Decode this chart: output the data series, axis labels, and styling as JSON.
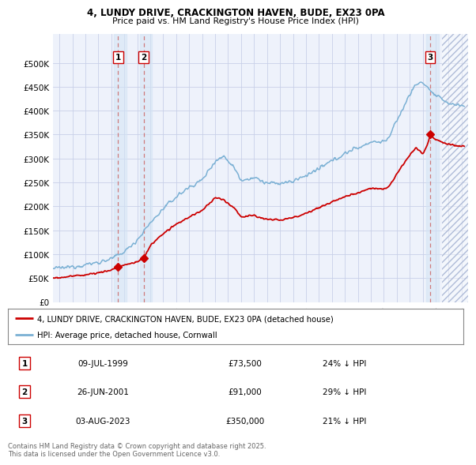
{
  "title_line1": "4, LUNDY DRIVE, CRACKINGTON HAVEN, BUDE, EX23 0PA",
  "title_line2": "Price paid vs. HM Land Registry's House Price Index (HPI)",
  "plot_bg": "#eef2fb",
  "grid_color": "#c8d0e8",
  "red_line_color": "#cc0000",
  "blue_line_color": "#7ab0d4",
  "legend_label_red": "4, LUNDY DRIVE, CRACKINGTON HAVEN, BUDE, EX23 0PA (detached house)",
  "legend_label_blue": "HPI: Average price, detached house, Cornwall",
  "transactions": [
    {
      "num": 1,
      "date_str": "09-JUL-1999",
      "year": 1999.52,
      "price": 73500,
      "pct": "24%"
    },
    {
      "num": 2,
      "date_str": "26-JUN-2001",
      "year": 2001.49,
      "price": 91000,
      "pct": "29%"
    },
    {
      "num": 3,
      "date_str": "03-AUG-2023",
      "year": 2023.59,
      "price": 350000,
      "pct": "21%"
    }
  ],
  "table_rows": [
    {
      "num": "1",
      "date": "09-JUL-1999",
      "price": "£73,500",
      "note": "24% ↓ HPI"
    },
    {
      "num": "2",
      "date": "26-JUN-2001",
      "price": "£91,000",
      "note": "29% ↓ HPI"
    },
    {
      "num": "3",
      "date": "03-AUG-2023",
      "price": "£350,000",
      "note": "21% ↓ HPI"
    }
  ],
  "footer": "Contains HM Land Registry data © Crown copyright and database right 2025.\nThis data is licensed under the Open Government Licence v3.0.",
  "ylim": [
    0,
    560000
  ],
  "xlim_start": 1994.5,
  "xlim_end": 2026.5,
  "yticks": [
    0,
    50000,
    100000,
    150000,
    200000,
    250000,
    300000,
    350000,
    400000,
    450000,
    500000
  ],
  "ytick_labels": [
    "£0",
    "£50K",
    "£100K",
    "£150K",
    "£200K",
    "£250K",
    "£300K",
    "£350K",
    "£400K",
    "£450K",
    "£500K"
  ],
  "xticks": [
    1995,
    1996,
    1997,
    1998,
    1999,
    2000,
    2001,
    2002,
    2003,
    2004,
    2005,
    2006,
    2007,
    2008,
    2009,
    2010,
    2011,
    2012,
    2013,
    2014,
    2015,
    2016,
    2017,
    2018,
    2019,
    2020,
    2021,
    2022,
    2023,
    2024,
    2025,
    2026
  ]
}
